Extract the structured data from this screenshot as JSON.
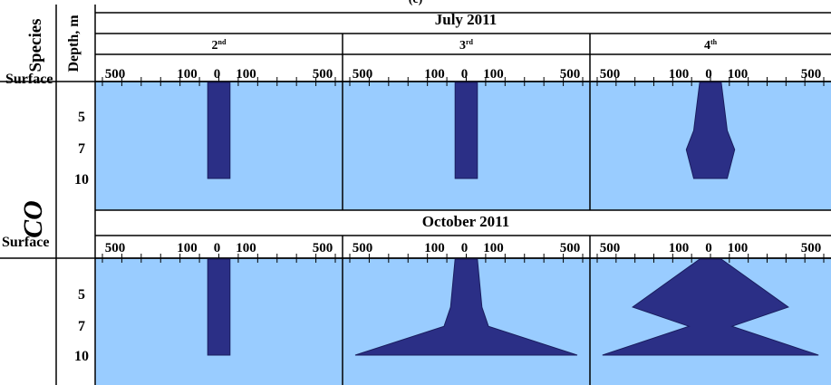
{
  "figure_label": "(c)",
  "header": {
    "species": "Species",
    "depth": "Depth, m"
  },
  "species_label": "CO",
  "colors": {
    "panel_bg": "#99ccff",
    "shape_fill": "#2b2f86",
    "border": "#000000"
  },
  "chart_data": {
    "type": "area",
    "description_axes": "symmetric abundance profiles; horizontal scale mirrored 500-100-0-100-500 about center",
    "x_tick_labels": [
      "500",
      "100",
      "0",
      "100",
      "500"
    ],
    "x_scale_max": 550,
    "depth_labels": [
      "Surface",
      "5",
      "7",
      "10"
    ],
    "depths": [
      0,
      5,
      7,
      10
    ],
    "columns": [
      "2nd",
      "3rd",
      "4th"
    ],
    "column_labels": [
      {
        "num": "2",
        "sup": "nd"
      },
      {
        "num": "3",
        "sup": "rd"
      },
      {
        "num": "4",
        "sup": "th"
      }
    ],
    "rows": [
      {
        "period": "July 2011",
        "panels": [
          {
            "column": "2nd",
            "halfwidth": [
              5,
              5,
              5,
              5
            ]
          },
          {
            "column": "3rd",
            "halfwidth": [
              5,
              5,
              5,
              5
            ]
          },
          {
            "column": "4th",
            "halfwidth": [
              5,
              12,
              25,
              12
            ]
          }
        ]
      },
      {
        "period": "October 2011",
        "panels": [
          {
            "column": "2nd",
            "halfwidth": [
              5,
              5,
              5,
              5
            ]
          },
          {
            "column": "3rd",
            "halfwidth": [
              5,
              10,
              20,
              500
            ]
          },
          {
            "column": "4th",
            "halfwidth": [
              5,
              260,
              20,
              500
            ]
          }
        ]
      }
    ]
  }
}
